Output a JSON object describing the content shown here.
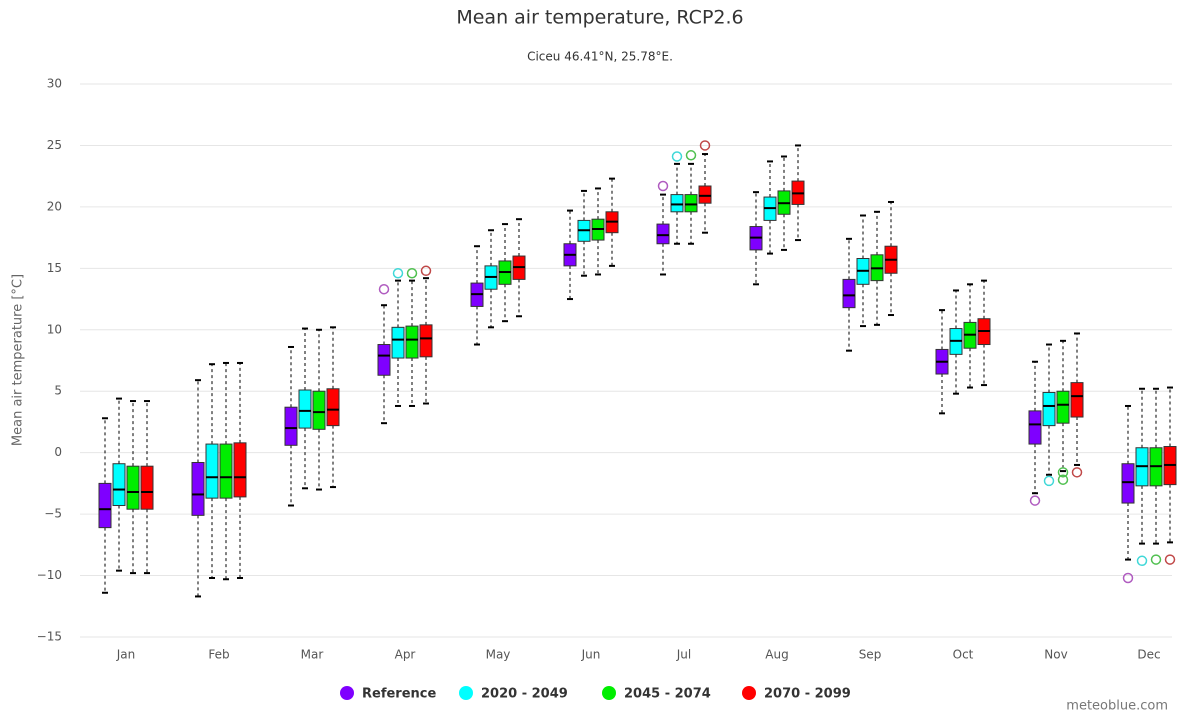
{
  "chart_data": {
    "type": "boxplot",
    "title": "Mean air temperature, RCP2.6",
    "subtitle": "Ciceu 46.41°N, 25.78°E.",
    "y_label": "Mean air temperature [°C]",
    "credit": "meteoblue.com",
    "categories": [
      "Jan",
      "Feb",
      "Mar",
      "Apr",
      "May",
      "Jun",
      "Jul",
      "Aug",
      "Sep",
      "Oct",
      "Nov",
      "Dec"
    ],
    "ylim": [
      -15,
      30
    ],
    "yticks": [
      {
        "value": -15,
        "label": "−15"
      },
      {
        "value": -10,
        "label": "−10"
      },
      {
        "value": -5,
        "label": "−5"
      },
      0,
      5,
      10,
      15,
      20,
      25,
      30
    ],
    "grid": true,
    "legend": "bottom",
    "series": [
      {
        "name": "Reference",
        "color": "#7f00ff",
        "outlier_color": "#b05cc0",
        "low": [
          -11.4,
          -11.7,
          -4.3,
          2.4,
          8.8,
          12.5,
          14.5,
          13.7,
          8.3,
          3.2,
          -3.3,
          -8.7
        ],
        "q1": [
          -6.1,
          -5.1,
          0.6,
          6.3,
          11.9,
          15.2,
          17.0,
          16.5,
          11.8,
          6.4,
          0.7,
          -4.1
        ],
        "median": [
          -4.6,
          -3.4,
          2.0,
          7.9,
          12.9,
          16.1,
          17.7,
          17.5,
          12.8,
          7.4,
          2.3,
          -2.4
        ],
        "q3": [
          -2.5,
          -0.8,
          3.7,
          8.8,
          13.8,
          17.0,
          18.6,
          18.4,
          14.1,
          8.4,
          3.4,
          -0.9
        ],
        "high": [
          2.8,
          5.9,
          8.6,
          12.0,
          16.8,
          19.7,
          21.0,
          21.2,
          17.4,
          11.6,
          7.4,
          3.8
        ],
        "outliers": [
          [],
          [],
          [],
          [
            13.3
          ],
          [],
          [],
          [
            21.7
          ],
          [],
          [],
          [],
          [
            -3.9
          ],
          [
            -10.2
          ]
        ]
      },
      {
        "name": "2020 - 2049",
        "color": "#00ffff",
        "outlier_color": "#40d8d8",
        "low": [
          -9.6,
          -10.2,
          -2.9,
          3.8,
          10.2,
          14.4,
          17.0,
          16.2,
          10.3,
          4.8,
          -1.8,
          -7.4
        ],
        "q1": [
          -4.3,
          -3.7,
          2.0,
          7.7,
          13.3,
          17.2,
          19.6,
          18.9,
          13.7,
          8.0,
          2.2,
          -2.7
        ],
        "median": [
          -3.0,
          -2.0,
          3.4,
          9.2,
          14.3,
          18.1,
          20.2,
          19.9,
          14.8,
          9.1,
          3.8,
          -1.1
        ],
        "q3": [
          -0.9,
          0.7,
          5.1,
          10.2,
          15.2,
          18.9,
          21.0,
          20.8,
          15.8,
          10.1,
          4.9,
          0.4
        ],
        "high": [
          4.4,
          7.2,
          10.1,
          14.0,
          18.1,
          21.3,
          23.5,
          23.7,
          19.3,
          13.2,
          8.8,
          5.2
        ],
        "outliers": [
          [],
          [],
          [],
          [
            14.6
          ],
          [],
          [],
          [
            24.1
          ],
          [],
          [],
          [],
          [
            -2.3
          ],
          [
            -8.8
          ]
        ]
      },
      {
        "name": "2045 - 2074",
        "color": "#00ee00",
        "outlier_color": "#50c050",
        "low": [
          -9.8,
          -10.3,
          -3.0,
          3.8,
          10.7,
          14.5,
          17.0,
          16.5,
          10.4,
          5.3,
          -1.5,
          -7.4
        ],
        "q1": [
          -4.6,
          -3.7,
          1.9,
          7.7,
          13.7,
          17.3,
          19.6,
          19.4,
          14.0,
          8.5,
          2.4,
          -2.7
        ],
        "median": [
          -3.2,
          -2.0,
          3.3,
          9.2,
          14.7,
          18.2,
          20.2,
          20.3,
          15.0,
          9.6,
          3.9,
          -1.1
        ],
        "q3": [
          -1.1,
          0.7,
          5.0,
          10.3,
          15.6,
          19.0,
          21.0,
          21.3,
          16.1,
          10.6,
          5.0,
          0.4
        ],
        "high": [
          4.2,
          7.3,
          10.0,
          14.0,
          18.6,
          21.5,
          23.5,
          24.1,
          19.6,
          13.7,
          9.1,
          5.2
        ],
        "outliers": [
          [],
          [],
          [],
          [
            14.6
          ],
          [],
          [],
          [
            24.2
          ],
          [],
          [],
          [],
          [
            -1.6,
            -2.2
          ],
          [
            -8.7
          ]
        ]
      },
      {
        "name": "2070 - 2099",
        "color": "#ff0000",
        "outlier_color": "#c04848",
        "low": [
          -9.8,
          -10.2,
          -2.8,
          4.0,
          11.1,
          15.2,
          17.9,
          17.3,
          11.2,
          5.5,
          -1.0,
          -7.3
        ],
        "q1": [
          -4.6,
          -3.6,
          2.2,
          7.8,
          14.1,
          17.9,
          20.3,
          20.2,
          14.6,
          8.8,
          2.9,
          -2.6
        ],
        "median": [
          -3.2,
          -2.0,
          3.5,
          9.3,
          15.1,
          18.8,
          20.9,
          21.1,
          15.7,
          9.9,
          4.6,
          -1.0
        ],
        "q3": [
          -1.1,
          0.8,
          5.2,
          10.4,
          16.0,
          19.6,
          21.7,
          22.1,
          16.8,
          10.9,
          5.7,
          0.5
        ],
        "high": [
          4.2,
          7.3,
          10.2,
          14.2,
          19.0,
          22.3,
          24.3,
          25.0,
          20.4,
          14.0,
          9.7,
          5.3
        ],
        "outliers": [
          [],
          [],
          [],
          [
            14.8
          ],
          [],
          [],
          [
            25.0
          ],
          [],
          [],
          [],
          [
            -1.6
          ],
          [
            -8.7
          ]
        ]
      }
    ]
  }
}
